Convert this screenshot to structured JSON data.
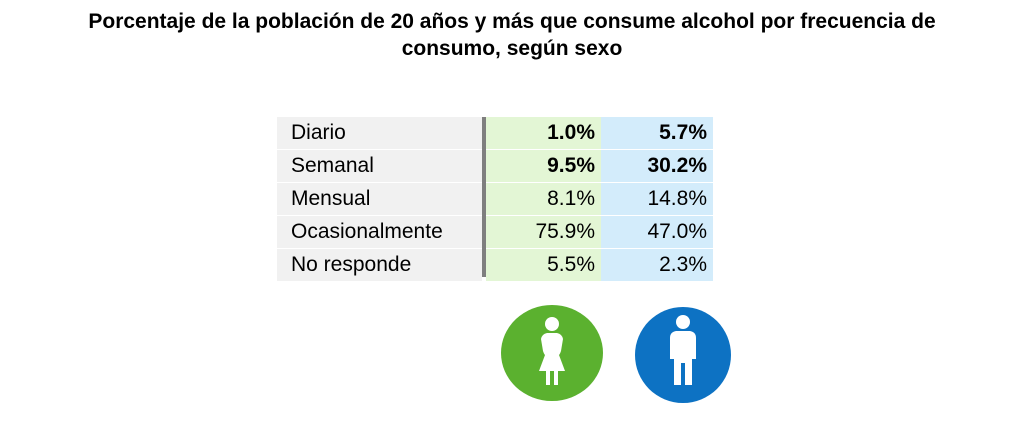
{
  "chart_data": {
    "type": "table",
    "title": "Porcentaje de la población de 20 años y más que consume alcohol por frecuencia de consumo, según sexo",
    "title_lines": [
      "Porcentaje de la población de 20 años y más que consume alcohol por frecuencia de",
      "consumo, según sexo"
    ],
    "columns": [
      "Mujeres",
      "Hombres"
    ],
    "rows": [
      {
        "label": "Diario",
        "female": "1.0%",
        "male": "5.7%",
        "bold": true
      },
      {
        "label": "Semanal",
        "female": "9.5%",
        "male": "30.2%",
        "bold": true
      },
      {
        "label": "Mensual",
        "female": "8.1%",
        "male": "14.8%",
        "bold": false
      },
      {
        "label": "Ocasionalmente",
        "female": "75.9%",
        "male": "47.0%",
        "bold": false
      },
      {
        "label": "No responde",
        "female": "5.5%",
        "male": "2.3%",
        "bold": false
      }
    ],
    "colors": {
      "female": "#5bb12f",
      "female_cell": "#e3f6d5",
      "male": "#0d72c3",
      "male_cell": "#d3ecfb",
      "label_cell": "#f1f1f1",
      "divider": "#7f7f7f"
    },
    "icons": {
      "female": "woman-icon",
      "male": "man-icon"
    }
  }
}
